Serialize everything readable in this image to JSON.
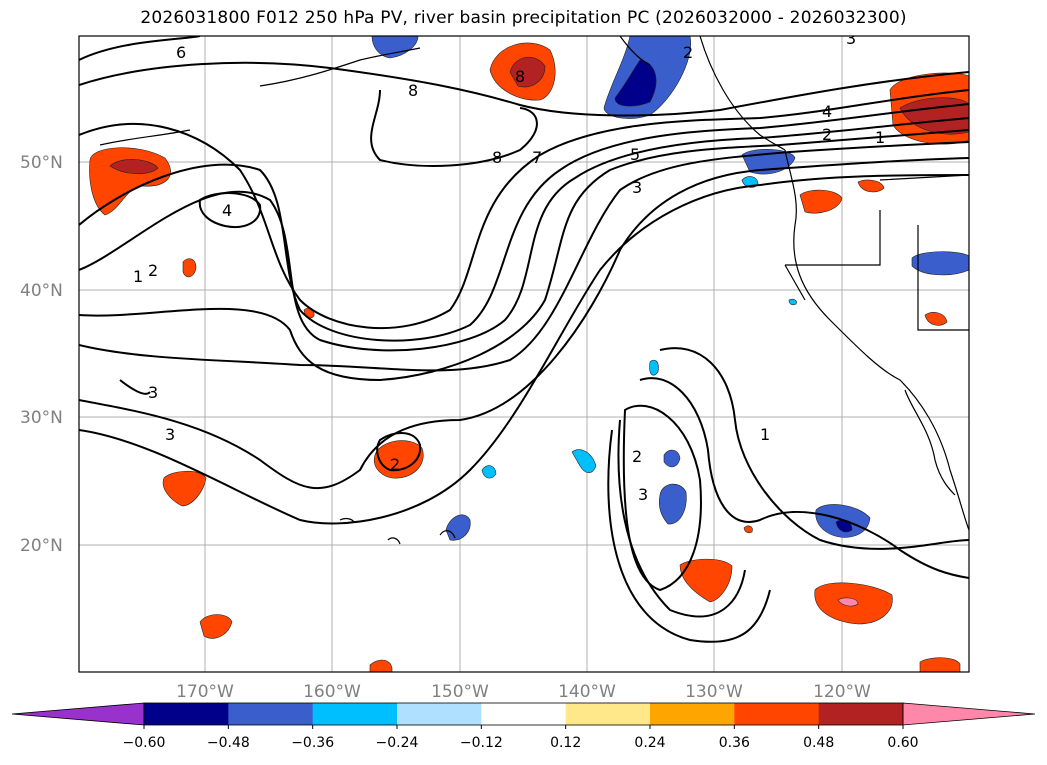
{
  "title": "2026031800 F012 250 hPa PV, river basin precipitation PC (2026032000 - 2026032300)",
  "map": {
    "lat_labels": [
      "50°N",
      "40°N",
      "30°N",
      "20°N"
    ],
    "lon_labels": [
      "170°W",
      "160°W",
      "150°W",
      "140°W",
      "130°W",
      "120°W"
    ],
    "contour_labels": [
      "6",
      "8",
      "8",
      "7",
      "5",
      "4",
      "2",
      "1",
      "3",
      "4",
      "1",
      "2",
      "3",
      "2",
      "3",
      "2",
      "1",
      "3",
      "2",
      "8",
      "3"
    ]
  },
  "colorbar": {
    "ticks": [
      "−0.60",
      "−0.48",
      "−0.36",
      "−0.24",
      "−0.12",
      "0.12",
      "0.24",
      "0.36",
      "0.48",
      "0.60"
    ],
    "colors": [
      "#9932cc",
      "#00008b",
      "#3a5fcd",
      "#00bfff",
      "#b0e0ff",
      "#ffffff",
      "#ffe88a",
      "#ffa500",
      "#ff4500",
      "#b22222",
      "#ff88aa"
    ]
  }
}
